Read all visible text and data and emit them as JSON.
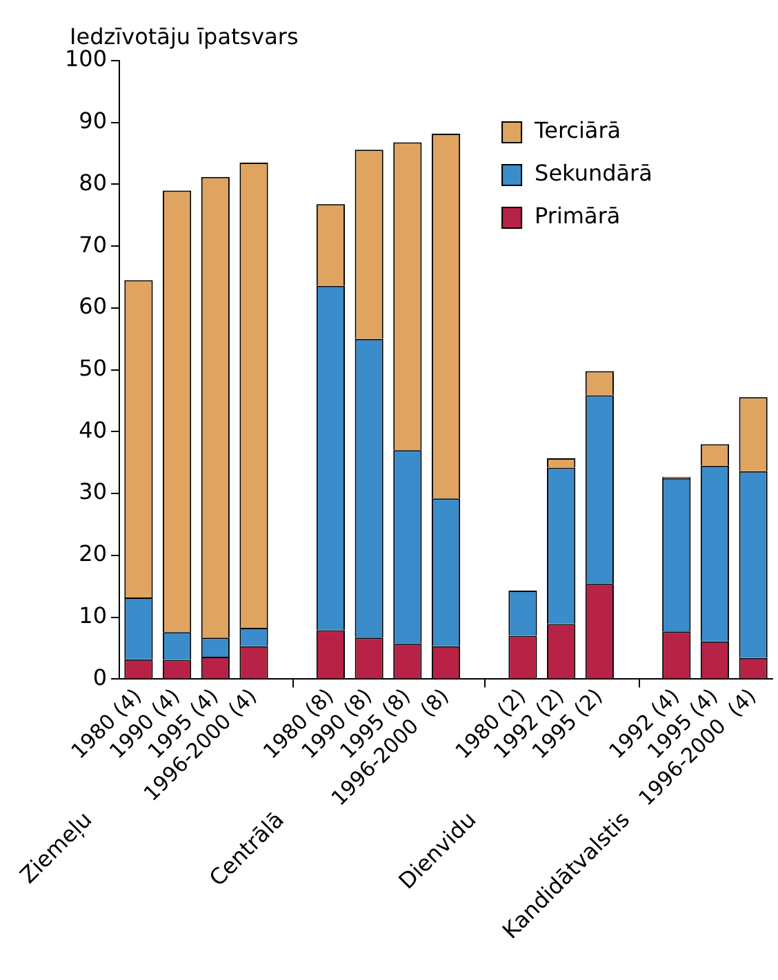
{
  "chart_data": {
    "type": "bar",
    "stacked": true,
    "ylabel": "Iedzīvotāju īpatsvars",
    "categories": [
      "1980 (4)",
      "1990 (4)",
      "1995 (4)",
      "1996-2000 (4)",
      null,
      "1980 (8)",
      "1990 (8)",
      "1995 (8)",
      "1996-2000  (8)",
      null,
      "1980 (2)",
      "1992 (2)",
      "1995 (2)",
      null,
      "1992 (4)",
      "1995 (4)",
      "1996-2000  (4)"
    ],
    "series": [
      {
        "name": "Primārā",
        "color": "#b72246",
        "values": [
          3.2,
          3.1,
          3.6,
          5.3,
          null,
          7.9,
          6.7,
          5.7,
          5.3,
          null,
          7.0,
          8.9,
          15.4,
          null,
          7.7,
          6.1,
          3.4
        ]
      },
      {
        "name": "Sekundārā",
        "color": "#3a8ccb",
        "values": [
          10.0,
          4.5,
          3.1,
          3.0,
          null,
          55.7,
          48.3,
          31.3,
          23.9,
          null,
          7.3,
          25.3,
          30.5,
          null,
          24.8,
          28.4,
          30.2
        ]
      },
      {
        "name": "Terciārā",
        "color": "#dfa45f",
        "values": [
          51.3,
          71.4,
          74.5,
          75.2,
          null,
          13.2,
          30.6,
          49.8,
          59.0,
          null,
          null,
          1.5,
          3.9,
          null,
          0.2,
          3.5,
          12.0
        ]
      }
    ],
    "ylim": [
      0,
      100
    ],
    "yticks": [
      0,
      10,
      20,
      30,
      40,
      50,
      60,
      70,
      80,
      90,
      100
    ],
    "grid": false,
    "legend": "top right",
    "annotations": [
      "Ziemeļu",
      "Centrālā",
      "Dienvidu",
      "Kandidātvalstis"
    ]
  }
}
